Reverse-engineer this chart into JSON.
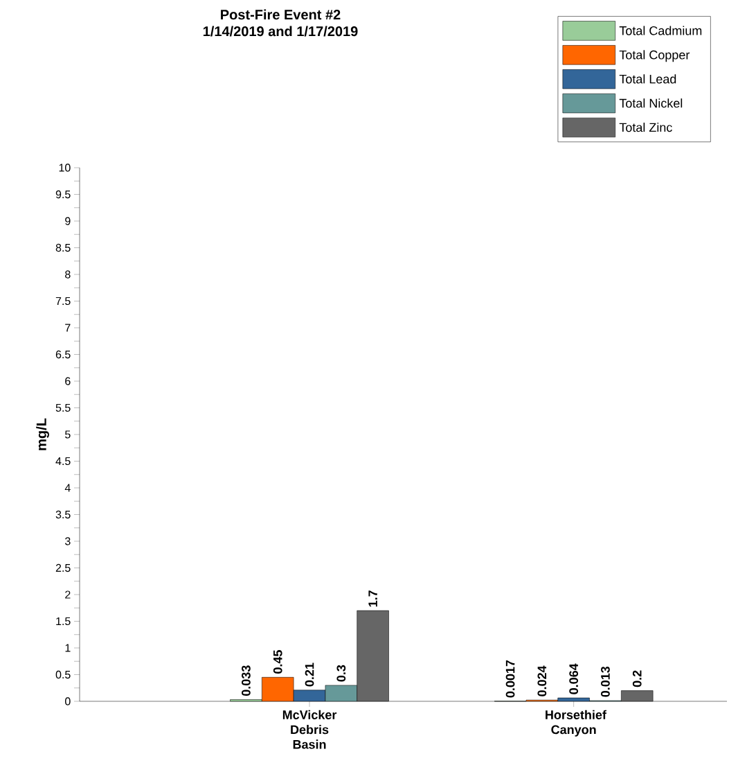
{
  "chart_data": {
    "type": "bar",
    "title": "Post-Fire Event #2",
    "subtitle": "1/14/2019 and 1/17/2019",
    "ylabel": "mg/L",
    "categories": [
      "McVicker Debris Basin",
      "Horsethief Canyon"
    ],
    "series": [
      {
        "name": "Total Cadmium",
        "color": "#99cc99",
        "values": [
          0.033,
          0.0017
        ]
      },
      {
        "name": "Total Copper",
        "color": "#ff6600",
        "values": [
          0.45,
          0.024
        ]
      },
      {
        "name": "Total Lead",
        "color": "#336699",
        "values": [
          0.21,
          0.064
        ]
      },
      {
        "name": "Total Nickel",
        "color": "#669999",
        "values": [
          0.3,
          0.013
        ]
      },
      {
        "name": "Total Zinc",
        "color": "#666666",
        "values": [
          1.7,
          0.2
        ]
      }
    ],
    "ylim": [
      0,
      10
    ],
    "yticks": [
      0,
      {
        "value": 0.25,
        "label": null
      },
      0.5,
      {
        "value": 0.75,
        "label": null
      },
      1,
      {
        "value": 1.25,
        "label": null
      },
      1.5,
      {
        "value": 1.75,
        "label": null
      },
      2,
      {
        "value": 2.25,
        "label": null
      },
      2.5,
      {
        "value": 2.75,
        "label": null
      },
      3,
      {
        "value": 3.25,
        "label": null
      },
      3.5,
      {
        "value": 3.75,
        "label": null
      },
      4,
      {
        "value": 4.25,
        "label": null
      },
      4.5,
      {
        "value": 4.75,
        "label": null
      },
      5,
      {
        "value": 5.25,
        "label": null
      },
      5.5,
      {
        "value": 5.75,
        "label": null
      },
      6,
      {
        "value": 6.25,
        "label": null
      },
      6.5,
      {
        "value": 6.75,
        "label": null
      },
      7,
      {
        "value": 7.25,
        "label": null
      },
      7.5,
      {
        "value": 7.75,
        "label": null
      },
      8,
      {
        "value": 8.25,
        "label": null
      },
      8.5,
      {
        "value": 8.75,
        "label": null
      },
      9,
      {
        "value": 9.25,
        "label": null
      },
      9.5,
      {
        "value": 9.75,
        "label": null
      },
      10
    ],
    "data_labels": true,
    "legend": "top right",
    "grid": false
  }
}
